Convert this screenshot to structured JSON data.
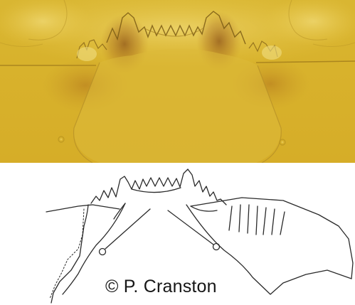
{
  "credit": "© P. Cranston",
  "colors": {
    "photo_background": "#d8b42c",
    "photo_dark": "#8a5a1a",
    "drawing_stroke": "#2a2a2a",
    "drawing_background": "#ffffff"
  }
}
